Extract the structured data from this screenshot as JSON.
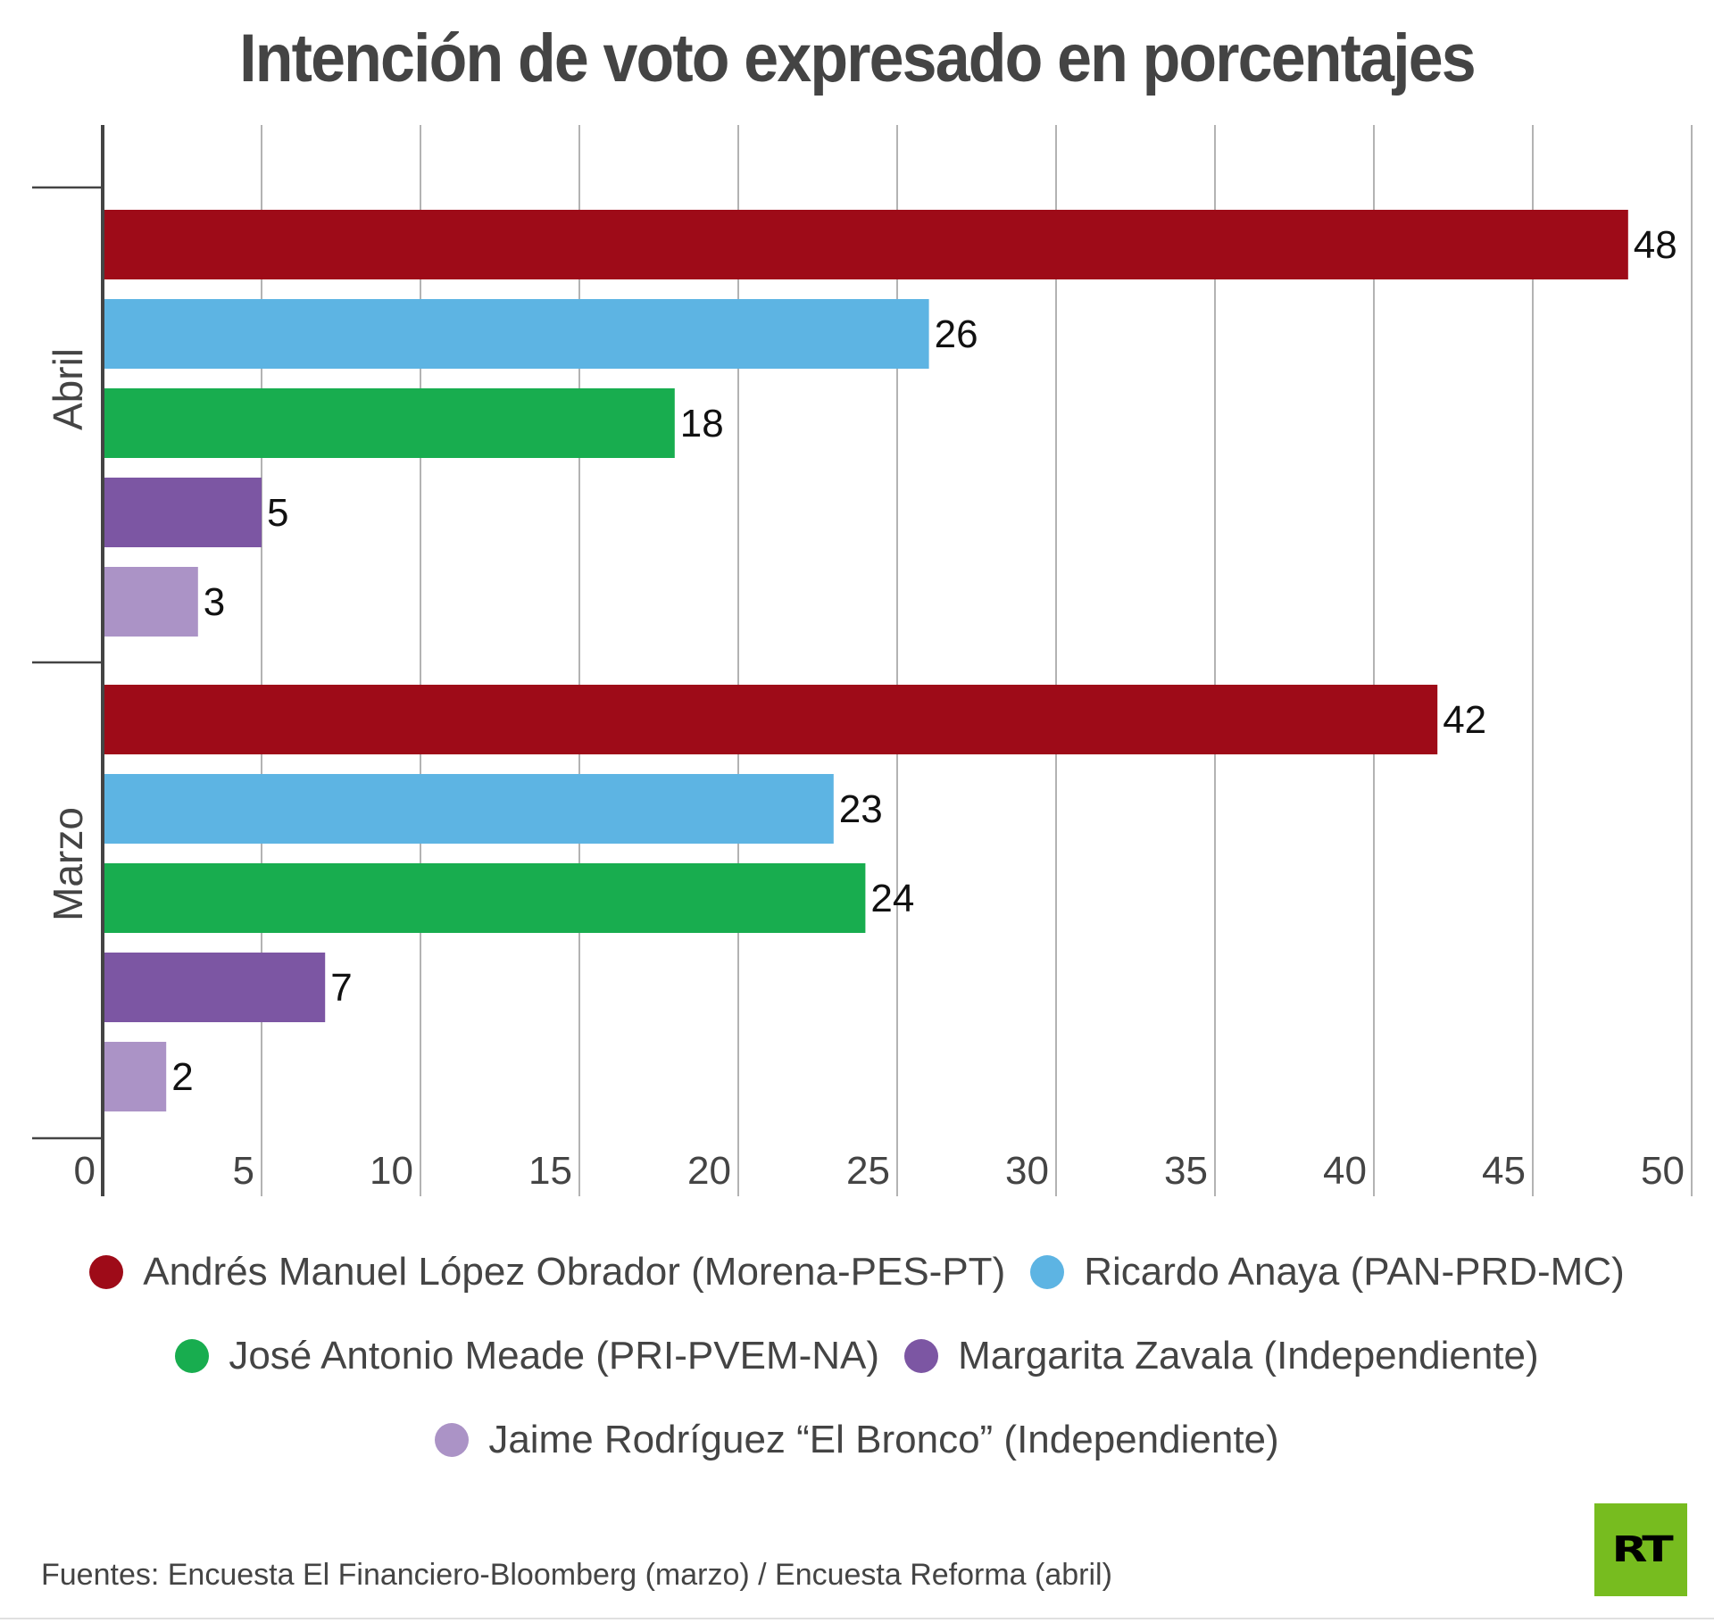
{
  "title": "Intención de voto expresado en porcentajes",
  "chart_data": {
    "type": "bar",
    "orientation": "horizontal",
    "title": "Intención de voto expresado en porcentajes",
    "xlabel": "",
    "ylabel": "",
    "xlim": [
      0,
      50
    ],
    "x_ticks": [
      0,
      5,
      10,
      15,
      20,
      25,
      30,
      35,
      40,
      45,
      50
    ],
    "grid": true,
    "legend_position": "bottom",
    "categories": [
      "Abril",
      "Marzo"
    ],
    "series": [
      {
        "name": "Andrés Manuel López Obrador (Morena-PES-PT)",
        "color": "#9e0b18",
        "values": [
          48,
          42
        ]
      },
      {
        "name": "Ricardo Anaya (PAN-PRD-MC)",
        "color": "#5db4e3",
        "values": [
          26,
          23
        ]
      },
      {
        "name": "José Antonio Meade (PRI-PVEM-NA)",
        "color": "#18ad4f",
        "values": [
          18,
          24
        ]
      },
      {
        "name": "Margarita Zavala (Independiente)",
        "color": "#7c56a3",
        "values": [
          5,
          7
        ]
      },
      {
        "name": "Jaime Rodríguez “El Bronco” (Independiente)",
        "color": "#ab93c6",
        "values": [
          3,
          2
        ]
      }
    ]
  },
  "legend": {
    "rows": [
      [
        0,
        1
      ],
      [
        2,
        3
      ],
      [
        4
      ]
    ]
  },
  "source": "Fuentes: Encuesta El Financiero-Bloomberg (marzo) / Encuesta Reforma (abril)",
  "logo": "RT"
}
